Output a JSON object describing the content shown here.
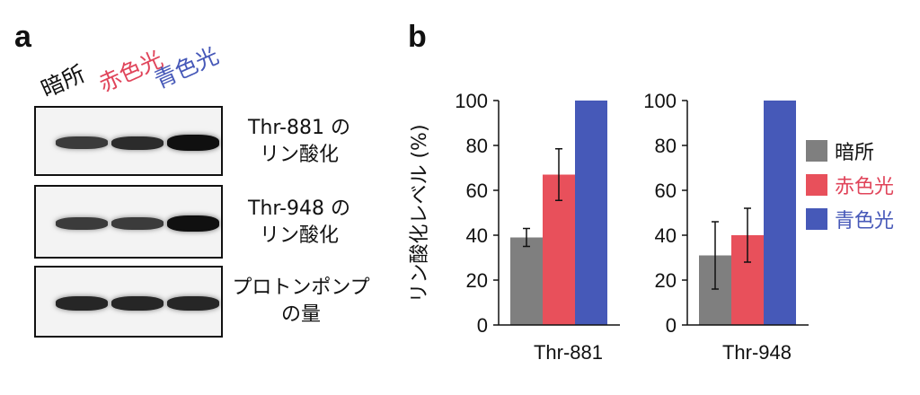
{
  "panel_a": {
    "letter": "a",
    "lanes": [
      {
        "label": "暗所",
        "color": "#111111"
      },
      {
        "label": "赤色光",
        "color": "#e0445a"
      },
      {
        "label": "青色光",
        "color": "#4658b8"
      }
    ],
    "blots": [
      {
        "line1": "Thr-881 の",
        "line2": "リン酸化",
        "intensity": [
          0.55,
          0.7,
          0.95
        ]
      },
      {
        "line1": "Thr-948 の",
        "line2": "リン酸化",
        "intensity": [
          0.55,
          0.55,
          0.95
        ]
      },
      {
        "line1": "プロトンポンプ",
        "line2": "の量",
        "intensity": [
          0.75,
          0.75,
          0.75
        ]
      }
    ]
  },
  "panel_b": {
    "letter": "b"
  },
  "chart_data": [
    {
      "type": "bar",
      "xlabel": "Thr-881",
      "ylabel": "リン酸化レベル (%)",
      "ylim": [
        0,
        100
      ],
      "yticks": [
        0,
        20,
        40,
        60,
        80,
        100
      ],
      "series": [
        {
          "name": "暗所",
          "value": 39,
          "error": 4,
          "color": "#7f7f7f"
        },
        {
          "name": "赤色光",
          "value": 67,
          "error": 11.5,
          "color": "#e8505b"
        },
        {
          "name": "青色光",
          "value": 100,
          "error": 0,
          "color": "#4659b8"
        }
      ]
    },
    {
      "type": "bar",
      "xlabel": "Thr-948",
      "ylabel": "",
      "ylim": [
        0,
        100
      ],
      "yticks": [
        0,
        20,
        40,
        60,
        80,
        100
      ],
      "series": [
        {
          "name": "暗所",
          "value": 31,
          "error": 15,
          "color": "#7f7f7f"
        },
        {
          "name": "赤色光",
          "value": 40,
          "error": 12,
          "color": "#e8505b"
        },
        {
          "name": "青色光",
          "value": 100,
          "error": 0,
          "color": "#4659b8"
        }
      ]
    }
  ],
  "legend": {
    "position": "right",
    "items": [
      {
        "label": "暗所",
        "color": "#7f7f7f"
      },
      {
        "label": "赤色光",
        "color": "#e8505b",
        "text_color": "#e0445a"
      },
      {
        "label": "青色光",
        "color": "#4659b8",
        "text_color": "#4658b8"
      }
    ]
  }
}
